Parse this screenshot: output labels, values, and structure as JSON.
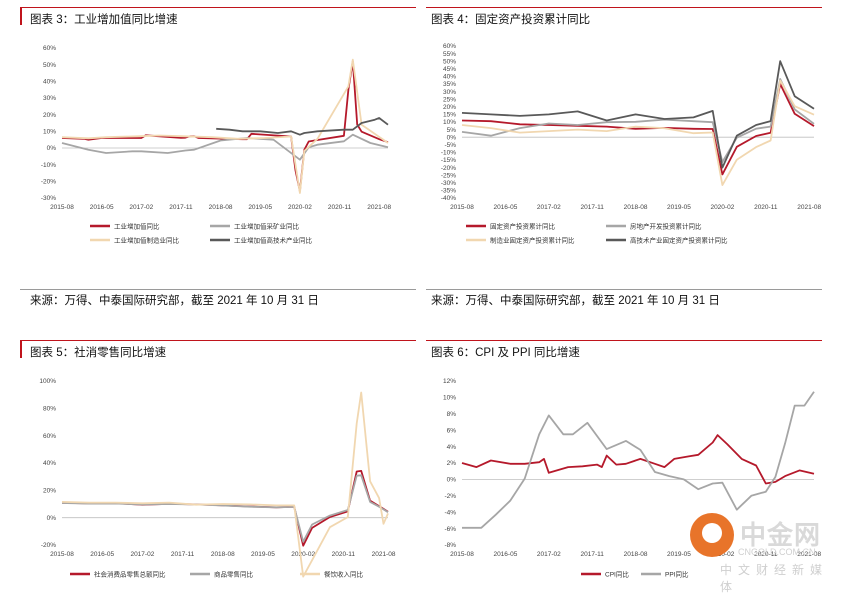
{
  "panels": [
    {
      "title": "图表 3：工业增加值同比增速",
      "source": "来源：万得、中泰国际研究部，截至 2021 年 10 月 31 日"
    },
    {
      "title": "图表 4：固定资产投资累计同比",
      "source": "来源：万得、中泰国际研究部，截至 2021 年 10 月 31 日"
    },
    {
      "title": "图表 5：社消零售同比增速",
      "source": ""
    },
    {
      "title": "图表 6：CPI 及 PPI 同比增速",
      "source": ""
    }
  ],
  "watermark": {
    "name": "中金网",
    "url": "CNGOLD.COM.CN",
    "sub": "中文财经新媒体"
  },
  "chart_data": [
    {
      "type": "line",
      "title": "图表 3：工业增加值同比增速",
      "xlabel": "",
      "ylabel": "",
      "ylim": [
        -30,
        60
      ],
      "yticks": [
        -30,
        -20,
        -10,
        0,
        10,
        20,
        30,
        40,
        50,
        60
      ],
      "ytick_labels": [
        "-30%",
        "-20%",
        "-10%",
        "0%",
        "10%",
        "20%",
        "30%",
        "40%",
        "50%",
        "60%"
      ],
      "x_start": "2015-08",
      "x_end": "2021-10",
      "xticks": [
        "2015-08",
        "2016-05",
        "2017-02",
        "2017-11",
        "2018-08",
        "2019-05",
        "2020-02",
        "2020-11",
        "2021-08"
      ],
      "legend": "bottom",
      "series": [
        {
          "name": "工业增加值同比",
          "color": "#b5192b",
          "x": [
            "2015-08",
            "2016-01",
            "2016-02",
            "2016-05",
            "2017-01",
            "2017-02",
            "2017-03",
            "2017-11",
            "2017-12",
            "2018-01",
            "2018-02",
            "2018-03",
            "2019-01",
            "2019-02",
            "2019-03",
            "2019-12",
            "2020-01",
            "2020-02",
            "2020-03",
            "2020-04",
            "2020-06",
            "2020-12",
            "2021-01",
            "2021-02",
            "2021-03",
            "2021-04",
            "2021-08",
            "2021-10"
          ],
          "y": [
            6.0,
            5.5,
            5.0,
            6.0,
            6.0,
            6.0,
            7.6,
            6.1,
            6.2,
            7.0,
            7.0,
            6.0,
            5.3,
            5.3,
            8.5,
            6.9,
            -13.5,
            -25.9,
            -1.1,
            3.9,
            4.8,
            7.3,
            35.1,
            52.0,
            14.1,
            9.8,
            5.3,
            3.5
          ]
        },
        {
          "name": "工业增加值采矿业同比",
          "color": "#a6a6a6",
          "x": [
            "2015-08",
            "2016-02",
            "2016-06",
            "2016-12",
            "2017-02",
            "2017-08",
            "2017-12",
            "2018-02",
            "2018-08",
            "2019-02",
            "2019-08",
            "2020-02",
            "2020-04",
            "2020-06",
            "2020-12",
            "2021-02",
            "2021-06",
            "2021-10"
          ],
          "y": [
            3.0,
            -1.0,
            -3.0,
            -2.0,
            -2.0,
            -3.0,
            -1.5,
            -1.0,
            4.5,
            6.0,
            5.0,
            -7.0,
            0.5,
            2.0,
            4.0,
            8.0,
            3.0,
            0.5
          ]
        },
        {
          "name": "工业增加值制造业同比",
          "color": "#f1d7b0",
          "x": [
            "2015-08",
            "2016-02",
            "2016-06",
            "2017-01",
            "2017-06",
            "2017-12",
            "2018-06",
            "2018-12",
            "2019-06",
            "2019-12",
            "2020-02",
            "2020-03",
            "2020-06",
            "2021-01",
            "2021-02",
            "2021-04",
            "2021-10"
          ],
          "y": [
            6.5,
            5.8,
            6.5,
            7.0,
            7.5,
            7.0,
            6.5,
            5.5,
            6.0,
            6.9,
            -27.0,
            -1.8,
            5.5,
            37.0,
            53.0,
            14.0,
            3.0
          ]
        },
        {
          "name": "工业增加值高技术产业同比",
          "color": "#595959",
          "x": [
            "2018-07",
            "2018-10",
            "2019-01",
            "2019-05",
            "2019-09",
            "2019-12",
            "2020-02",
            "2020-03",
            "2020-06",
            "2020-12",
            "2021-02",
            "2021-04",
            "2021-07",
            "2021-08",
            "2021-10"
          ],
          "y": [
            11.5,
            11.0,
            10.0,
            10.0,
            9.0,
            10.0,
            8.0,
            9.0,
            10.0,
            11.0,
            11.0,
            15.0,
            17.0,
            18.0,
            14.0
          ]
        }
      ]
    },
    {
      "type": "line",
      "title": "图表 4：固定资产投资累计同比",
      "xlabel": "",
      "ylabel": "",
      "ylim": [
        -40,
        60
      ],
      "yticks": [
        -40,
        -35,
        -30,
        -25,
        -20,
        -15,
        -10,
        -5,
        0,
        5,
        10,
        15,
        20,
        25,
        30,
        35,
        40,
        45,
        50,
        55,
        60
      ],
      "ytick_labels": [
        "-40%",
        "-35%",
        "-30%",
        "-25%",
        "-20%",
        "-15%",
        "-10%",
        "-5%",
        "0%",
        "5%",
        "10%",
        "15%",
        "20%",
        "25%",
        "30%",
        "35%",
        "40%",
        "45%",
        "50%",
        "55%",
        "60%"
      ],
      "x_start": "2015-08",
      "x_end": "2021-09",
      "xticks": [
        "2015-08",
        "2016-05",
        "2017-02",
        "2017-11",
        "2018-08",
        "2019-05",
        "2020-02",
        "2020-11",
        "2021-08"
      ],
      "legend": "bottom",
      "series": [
        {
          "name": "固定资产投资累计同比",
          "color": "#b5192b",
          "x": [
            "2015-08",
            "2016-02",
            "2016-08",
            "2017-02",
            "2017-08",
            "2018-02",
            "2018-08",
            "2019-02",
            "2019-08",
            "2019-12",
            "2020-02",
            "2020-05",
            "2020-09",
            "2020-12",
            "2021-02",
            "2021-05",
            "2021-09"
          ],
          "y": [
            11.0,
            10.5,
            8.5,
            8.0,
            7.5,
            7.0,
            5.5,
            6.1,
            5.5,
            5.4,
            -24.5,
            -6.3,
            0.8,
            2.9,
            35.0,
            15.4,
            7.3
          ]
        },
        {
          "name": "房地产开发投资累计同比",
          "color": "#a6a6a6",
          "x": [
            "2015-08",
            "2016-02",
            "2016-08",
            "2017-02",
            "2017-08",
            "2018-02",
            "2018-08",
            "2019-02",
            "2019-08",
            "2019-12",
            "2020-02",
            "2020-05",
            "2020-09",
            "2020-12",
            "2021-02",
            "2021-05",
            "2021-09"
          ],
          "y": [
            3.5,
            1.0,
            6.0,
            9.0,
            8.0,
            9.9,
            10.1,
            11.6,
            10.5,
            9.9,
            -16.3,
            -0.3,
            5.6,
            7.0,
            38.3,
            18.3,
            8.8
          ]
        },
        {
          "name": "制造业固定资产投资累计同比",
          "color": "#f1d7b0",
          "x": [
            "2015-08",
            "2016-02",
            "2016-08",
            "2017-02",
            "2017-08",
            "2018-02",
            "2018-08",
            "2019-02",
            "2019-08",
            "2019-12",
            "2020-02",
            "2020-05",
            "2020-09",
            "2020-12",
            "2021-02",
            "2021-05",
            "2021-09"
          ],
          "y": [
            8.0,
            6.0,
            3.0,
            4.0,
            5.0,
            4.0,
            7.0,
            5.9,
            2.6,
            3.1,
            -31.5,
            -14.8,
            -6.5,
            -2.2,
            37.3,
            20.4,
            14.8
          ]
        },
        {
          "name": "高技术产业固定资产投资累计同比",
          "color": "#595959",
          "x": [
            "2015-08",
            "2016-02",
            "2016-08",
            "2017-02",
            "2017-08",
            "2018-02",
            "2018-08",
            "2019-02",
            "2019-08",
            "2019-12",
            "2020-02",
            "2020-05",
            "2020-09",
            "2020-12",
            "2021-02",
            "2021-05",
            "2021-09"
          ],
          "y": [
            16.0,
            15.0,
            14.0,
            15.0,
            17.0,
            11.0,
            15.0,
            12.0,
            13.0,
            17.3,
            -20.0,
            1.0,
            8.0,
            10.6,
            50.0,
            27.0,
            18.7
          ]
        }
      ]
    },
    {
      "type": "line",
      "title": "图表 5：社消零售同比增速",
      "xlabel": "",
      "ylabel": "",
      "ylim": [
        -20,
        100
      ],
      "yticks": [
        -20,
        0,
        20,
        40,
        60,
        80,
        100
      ],
      "ytick_labels": [
        "-20%",
        "0%",
        "20%",
        "40%",
        "60%",
        "80%",
        "100%"
      ],
      "x_start": "2015-08",
      "x_end": "2021-09",
      "xticks": [
        "2015-08",
        "2016-05",
        "2017-02",
        "2017-11",
        "2018-08",
        "2019-05",
        "2020-02",
        "2020-11",
        "2021-08"
      ],
      "legend": "bottom",
      "series": [
        {
          "name": "社会消费品零售总额同比",
          "color": "#b5192b",
          "x": [
            "2015-08",
            "2016-02",
            "2016-08",
            "2017-02",
            "2017-08",
            "2018-02",
            "2018-08",
            "2019-02",
            "2019-08",
            "2019-12",
            "2020-02",
            "2020-04",
            "2020-08",
            "2020-12",
            "2021-02",
            "2021-03",
            "2021-05",
            "2021-07",
            "2021-09"
          ],
          "y": [
            10.8,
            10.5,
            10.6,
            9.5,
            10.1,
            9.7,
            9.0,
            8.2,
            7.5,
            8.0,
            -20.5,
            -7.5,
            0.5,
            4.6,
            33.8,
            34.2,
            12.4,
            8.5,
            4.4
          ]
        },
        {
          "name": "商品零售同比",
          "color": "#a6a6a6",
          "x": [
            "2015-08",
            "2016-02",
            "2016-08",
            "2017-02",
            "2017-08",
            "2018-02",
            "2018-08",
            "2019-02",
            "2019-08",
            "2019-12",
            "2020-02",
            "2020-04",
            "2020-08",
            "2020-12",
            "2021-02",
            "2021-03",
            "2021-05",
            "2021-07",
            "2021-09"
          ],
          "y": [
            10.7,
            10.3,
            10.4,
            9.6,
            10.0,
            9.6,
            8.9,
            8.0,
            7.5,
            7.9,
            -17.6,
            -5.0,
            1.5,
            5.6,
            30.7,
            31.0,
            11.5,
            8.0,
            4.0
          ]
        },
        {
          "name": "餐饮收入同比",
          "color": "#f1d7b0",
          "x": [
            "2015-08",
            "2016-02",
            "2016-08",
            "2017-02",
            "2017-08",
            "2018-02",
            "2018-08",
            "2019-02",
            "2019-08",
            "2019-12",
            "2020-02",
            "2020-04",
            "2020-08",
            "2020-12",
            "2021-02",
            "2021-03",
            "2021-05",
            "2021-07",
            "2021-08",
            "2021-09"
          ],
          "y": [
            11.5,
            11.0,
            11.0,
            10.5,
            11.0,
            9.5,
            10.0,
            9.7,
            9.0,
            9.0,
            -43.1,
            -31.1,
            -7.0,
            0.4,
            68.9,
            91.6,
            26.6,
            14.3,
            -4.5,
            3.1
          ]
        }
      ]
    },
    {
      "type": "line",
      "title": "图表 6：CPI 及 PPI 同比增速",
      "xlabel": "",
      "ylabel": "",
      "ylim": [
        -8,
        12
      ],
      "yticks": [
        -8,
        -6,
        -4,
        -2,
        0,
        2,
        4,
        6,
        8,
        10,
        12
      ],
      "ytick_labels": [
        "-8%",
        "-6%",
        "-4%",
        "-2%",
        "0%",
        "2%",
        "4%",
        "6%",
        "8%",
        "10%",
        "12%"
      ],
      "x_start": "2015-08",
      "x_end": "2021-09",
      "xticks": [
        "2015-08",
        "2016-05",
        "2017-02",
        "2017-11",
        "2018-08",
        "2019-05",
        "2020-02",
        "2020-11",
        "2021-08"
      ],
      "legend": "bottom",
      "series": [
        {
          "name": "CPI同比",
          "color": "#b5192b",
          "x": [
            "2015-08",
            "2015-11",
            "2016-02",
            "2016-06",
            "2016-09",
            "2016-12",
            "2017-01",
            "2017-02",
            "2017-06",
            "2017-09",
            "2017-12",
            "2018-01",
            "2018-02",
            "2018-04",
            "2018-06",
            "2018-09",
            "2018-12",
            "2019-02",
            "2019-04",
            "2019-07",
            "2019-09",
            "2019-12",
            "2020-01",
            "2020-03",
            "2020-06",
            "2020-09",
            "2020-11",
            "2021-01",
            "2021-03",
            "2021-06",
            "2021-09"
          ],
          "y": [
            2.0,
            1.5,
            2.3,
            1.9,
            1.9,
            2.1,
            2.5,
            0.8,
            1.5,
            1.6,
            1.8,
            1.5,
            2.9,
            1.8,
            1.9,
            2.5,
            1.9,
            1.5,
            2.5,
            2.8,
            3.0,
            4.5,
            5.4,
            4.3,
            2.5,
            1.7,
            -0.5,
            -0.3,
            0.4,
            1.1,
            0.7
          ]
        },
        {
          "name": "PPI同比",
          "color": "#a6a6a6",
          "x": [
            "2015-08",
            "2015-12",
            "2016-03",
            "2016-06",
            "2016-09",
            "2016-12",
            "2017-02",
            "2017-05",
            "2017-07",
            "2017-10",
            "2018-02",
            "2018-06",
            "2018-09",
            "2018-12",
            "2019-03",
            "2019-06",
            "2019-09",
            "2019-12",
            "2020-02",
            "2020-05",
            "2020-08",
            "2020-11",
            "2021-01",
            "2021-03",
            "2021-05",
            "2021-07",
            "2021-09"
          ],
          "y": [
            -5.9,
            -5.9,
            -4.3,
            -2.6,
            0.1,
            5.5,
            7.8,
            5.5,
            5.5,
            6.9,
            3.7,
            4.7,
            3.6,
            0.9,
            0.4,
            0.0,
            -1.2,
            -0.5,
            -0.4,
            -3.7,
            -2.0,
            -1.5,
            0.3,
            4.4,
            9.0,
            9.0,
            10.7
          ]
        }
      ]
    }
  ]
}
